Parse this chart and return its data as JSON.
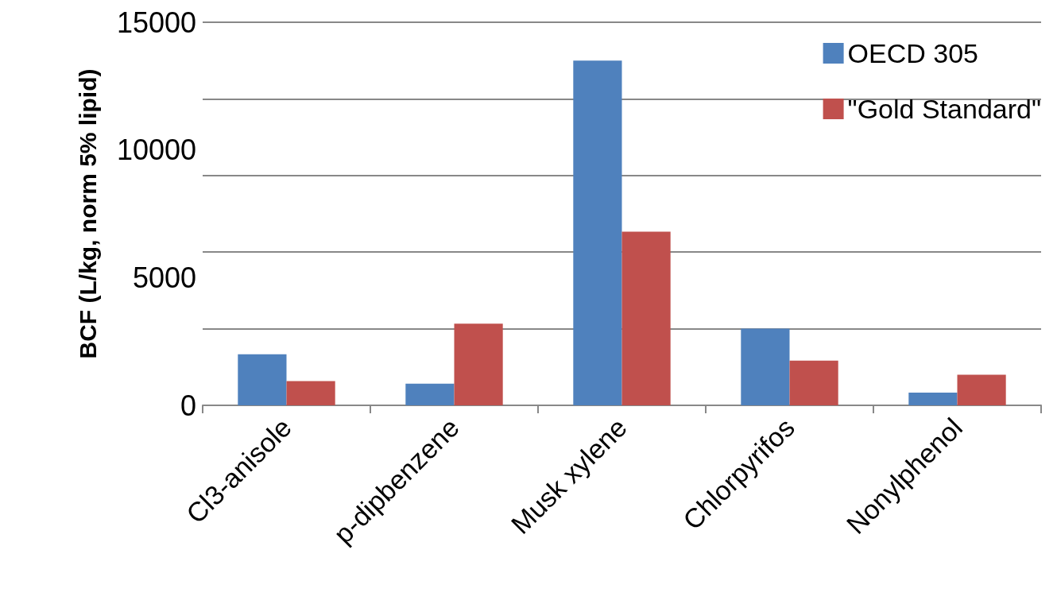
{
  "chart_data": {
    "type": "bar",
    "ylabel": "BCF (L/kg, norm 5% lipid)",
    "categories": [
      "Cl3-anisole",
      "p-dipbenzene",
      "Musk xylene",
      "Chlorpyrifos",
      "Nonylphenol"
    ],
    "series": [
      {
        "name": "OECD 305",
        "color": "#4f81bd",
        "values": [
          2000,
          850,
          13500,
          3000,
          500
        ]
      },
      {
        "name": "\"Gold Standard\"",
        "color": "#c0504d",
        "values": [
          950,
          3200,
          6800,
          1750,
          1200
        ]
      }
    ],
    "ylim": [
      0,
      15000
    ],
    "yticks": [
      0,
      5000,
      10000,
      15000
    ],
    "grid": "y",
    "legend": "top right"
  }
}
